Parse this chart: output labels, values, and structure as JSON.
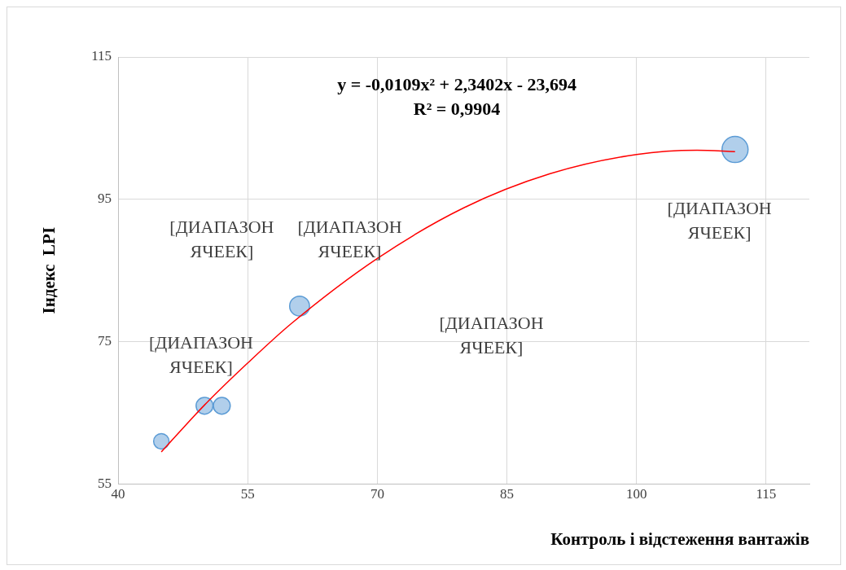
{
  "chart_data": {
    "type": "bubble",
    "xlabel": "Контроль і відстеження вантажів",
    "ylabel": "Індекс  LPI",
    "xlim": [
      40,
      120
    ],
    "xticks": [
      40,
      55,
      70,
      85,
      100,
      115
    ],
    "ylim": [
      55,
      115
    ],
    "yticks": [
      55,
      75,
      95,
      115
    ],
    "grid": true,
    "legend": false,
    "annotations": [
      "y = -0,0109x² + 2,3402x - 23,694\nR² = 0,9904",
      "[ДИАПАЗОН ЯЧЕЕК]",
      "[ДИАПАЗОН ЯЧЕЕК]",
      "[ДИАПАЗОН ЯЧЕЕК]",
      "[ДИАПАЗОН ЯЧЕЕК]",
      "[ДИАПАЗОН ЯЧЕЕК]"
    ],
    "series": [
      {
        "color": "#9dc3e6",
        "x": [
          45,
          50,
          52,
          61,
          111.4
        ],
        "values": [
          61,
          66,
          66,
          80,
          102
        ],
        "sizes": [
          0.35,
          0.42,
          0.42,
          0.58,
          1
        ]
      },
      {
        "type": "line",
        "color": "#ff0000",
        "marker": "none",
        "x": [
          45,
          50,
          55,
          60,
          70,
          80,
          90,
          100,
          107,
          111.4
        ],
        "values": [
          59.5,
          66.1,
          72.0,
          77.5,
          86.7,
          93.8,
          98.6,
          101.3,
          101.9,
          101.7
        ]
      }
    ]
  }
}
